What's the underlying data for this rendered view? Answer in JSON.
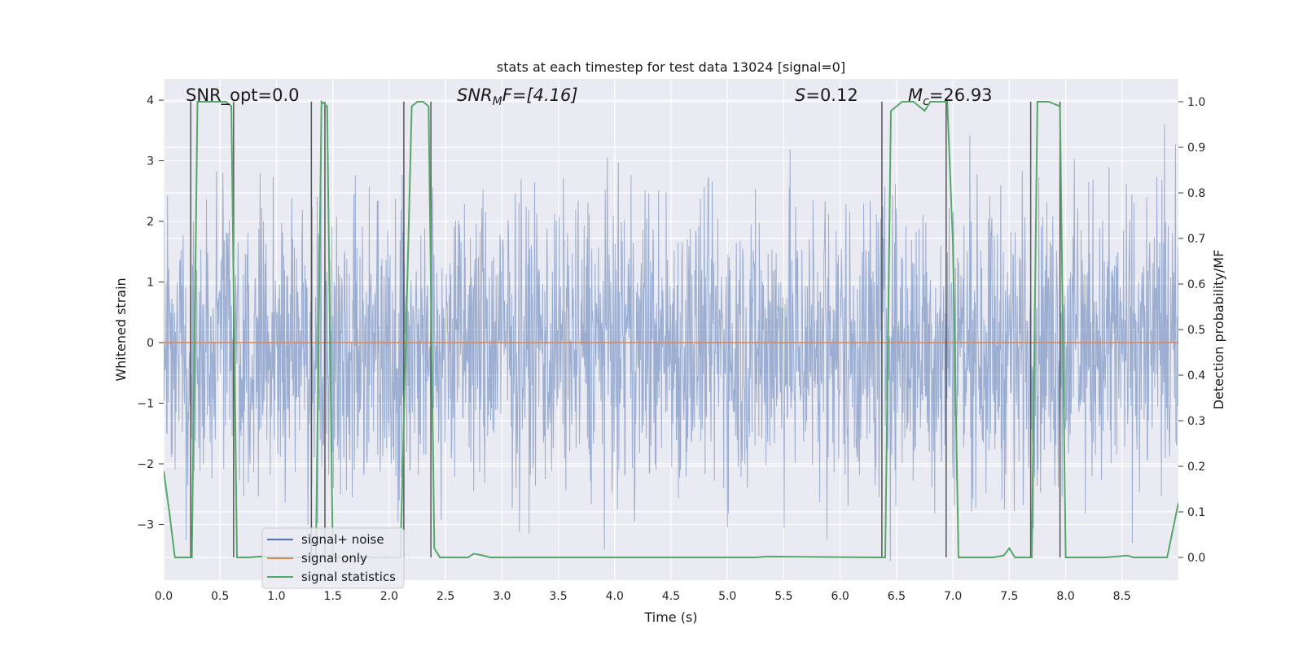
{
  "chart_data": {
    "type": "line",
    "title": "stats at each timestep for test data 13024 [signal=0]",
    "xlabel": "Time (s)",
    "ylabel": "Whitened strain",
    "y2label": "Detection probability/MF",
    "xlim": [
      0.0,
      9.0
    ],
    "ylim": [
      -3.92,
      4.35
    ],
    "y2lim": [
      -0.05,
      1.05
    ],
    "xticks": [
      0.0,
      0.5,
      1.0,
      1.5,
      2.0,
      2.5,
      3.0,
      3.5,
      4.0,
      4.5,
      5.0,
      5.5,
      6.0,
      6.5,
      7.0,
      7.5,
      8.0,
      8.5
    ],
    "xtick_labels": [
      "0.0",
      "0.5",
      "1.0",
      "1.5",
      "2.0",
      "2.5",
      "3.0",
      "3.5",
      "4.0",
      "4.5",
      "5.0",
      "5.5",
      "6.0",
      "6.5",
      "7.0",
      "7.5",
      "8.0",
      "8.5"
    ],
    "yticks": [
      -3,
      -2,
      -1,
      0,
      1,
      2,
      3,
      4
    ],
    "ytick_labels": [
      "−3",
      "−2",
      "−1",
      "0",
      "1",
      "2",
      "3",
      "4"
    ],
    "y2ticks": [
      0.0,
      0.1,
      0.2,
      0.3,
      0.4,
      0.5,
      0.6,
      0.7,
      0.8,
      0.9,
      1.0
    ],
    "y2tick_labels": [
      "0.0",
      "0.1",
      "0.2",
      "0.3",
      "0.4",
      "0.5",
      "0.6",
      "0.7",
      "0.8",
      "0.9",
      "1.0"
    ],
    "grid": true,
    "annotations": {
      "snr_opt": "SNR_opt=0.0",
      "snr_mf_main": "SNR",
      "snr_mf_sub": "M",
      "snr_mf_rest": "F=[4.16]",
      "s_main": "S",
      "s_rest": "=0.12",
      "mc_main": "M",
      "mc_sub": "c",
      "mc_rest": "=26.93"
    },
    "series": [
      {
        "name": "signal+ noise",
        "color": "#4c72b0",
        "noise_envelope": {
          "typical_abs": 1.6,
          "max_abs": 3.6,
          "points": 2400
        }
      },
      {
        "name": "signal only",
        "color": "#dd8452",
        "x": [
          0.0,
          9.0
        ],
        "y": [
          0.0,
          0.0
        ]
      },
      {
        "name": "signal statistics",
        "color": "#55a868",
        "axis": "right",
        "x": [
          0.0,
          0.05,
          0.1,
          0.25,
          0.3,
          0.55,
          0.6,
          0.65,
          0.75,
          0.85,
          1.3,
          1.35,
          1.4,
          1.45,
          1.5,
          2.0,
          2.1,
          2.2,
          2.25,
          2.3,
          2.35,
          2.4,
          2.45,
          2.55,
          2.7,
          2.75,
          2.8,
          2.9,
          5.25,
          5.35,
          6.35,
          6.4,
          6.45,
          6.55,
          6.65,
          6.75,
          6.8,
          6.9,
          6.95,
          7.0,
          7.05,
          7.1,
          7.35,
          7.45,
          7.5,
          7.55,
          7.65,
          7.7,
          7.75,
          7.8,
          7.85,
          7.95,
          8.0,
          8.05,
          8.15,
          8.35,
          8.55,
          8.6,
          8.7,
          8.9,
          9.0
        ],
        "y": [
          0.19,
          0.1,
          0.0,
          0.0,
          1.0,
          1.0,
          0.99,
          0.0,
          0.0,
          0.002,
          0.0,
          0.0,
          1.0,
          0.99,
          0.0,
          0.0,
          0.0,
          0.99,
          1.0,
          1.0,
          0.99,
          0.02,
          0.0,
          0.0,
          0.0,
          0.008,
          0.006,
          0.0,
          0.0,
          0.002,
          0.0,
          0.0,
          0.98,
          1.0,
          1.0,
          0.98,
          1.0,
          1.0,
          1.0,
          0.69,
          0.0,
          0.0,
          0.0,
          0.004,
          0.02,
          0.0,
          0.0,
          0.0,
          1.0,
          1.0,
          1.0,
          0.99,
          0.0,
          0.0,
          0.0,
          0.0,
          0.004,
          0.0,
          0.0,
          0.0,
          0.12
        ]
      }
    ],
    "vlines_x": [
      0.24,
      0.62,
      1.31,
      1.43,
      2.13,
      2.37,
      6.37,
      6.94,
      7.69,
      7.95
    ],
    "legend": {
      "location": "lower-left",
      "entries": [
        {
          "label": "signal+ noise",
          "color": "#4c72b0"
        },
        {
          "label": "signal only",
          "color": "#dd8452"
        },
        {
          "label": "signal statistics",
          "color": "#55a868"
        }
      ]
    }
  }
}
